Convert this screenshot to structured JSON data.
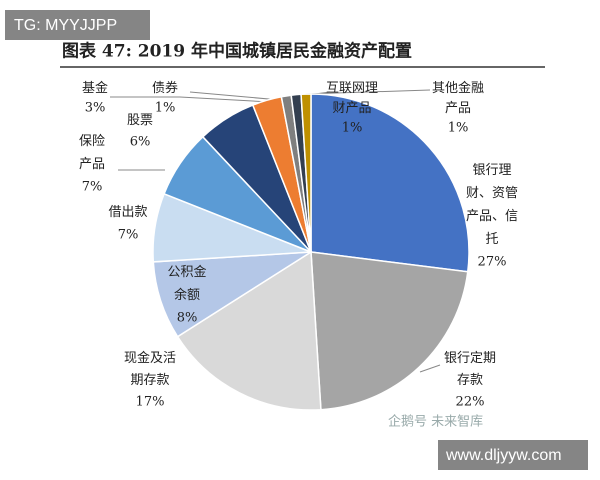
{
  "watermark_top": "TG: MYYJJPP",
  "watermark_source": "企鹅号 未来智库",
  "watermark_bottom": "www.dljyyw.com",
  "chart_data": {
    "type": "pie",
    "title": "图表 47: 2019 年中国城镇居民金融资产配置",
    "categories": [
      "银行理\n财、资管\n产品、信\n托",
      "银行定期\n存款",
      "现金及活\n期存款",
      "公积金\n余额",
      "借出款",
      "保险\n产品",
      "股票",
      "基金",
      "债券",
      "互联网理\n财产品",
      "其他金融\n产品"
    ],
    "values": [
      27,
      22,
      17,
      8,
      7,
      7,
      6,
      3,
      1,
      1,
      1
    ],
    "value_labels": [
      "27%",
      "22%",
      "17%",
      "8%",
      "7%",
      "7%",
      "6%",
      "3%",
      "1%",
      "1%",
      "1%"
    ],
    "colors": [
      "#4472c4",
      "#a5a5a5",
      "#d9d9d9",
      "#b4c7e7",
      "#c9ddf1",
      "#5b9bd5",
      "#264478",
      "#ed7d31",
      "#7f7f7f",
      "#333f50",
      "#bf9000"
    ]
  }
}
